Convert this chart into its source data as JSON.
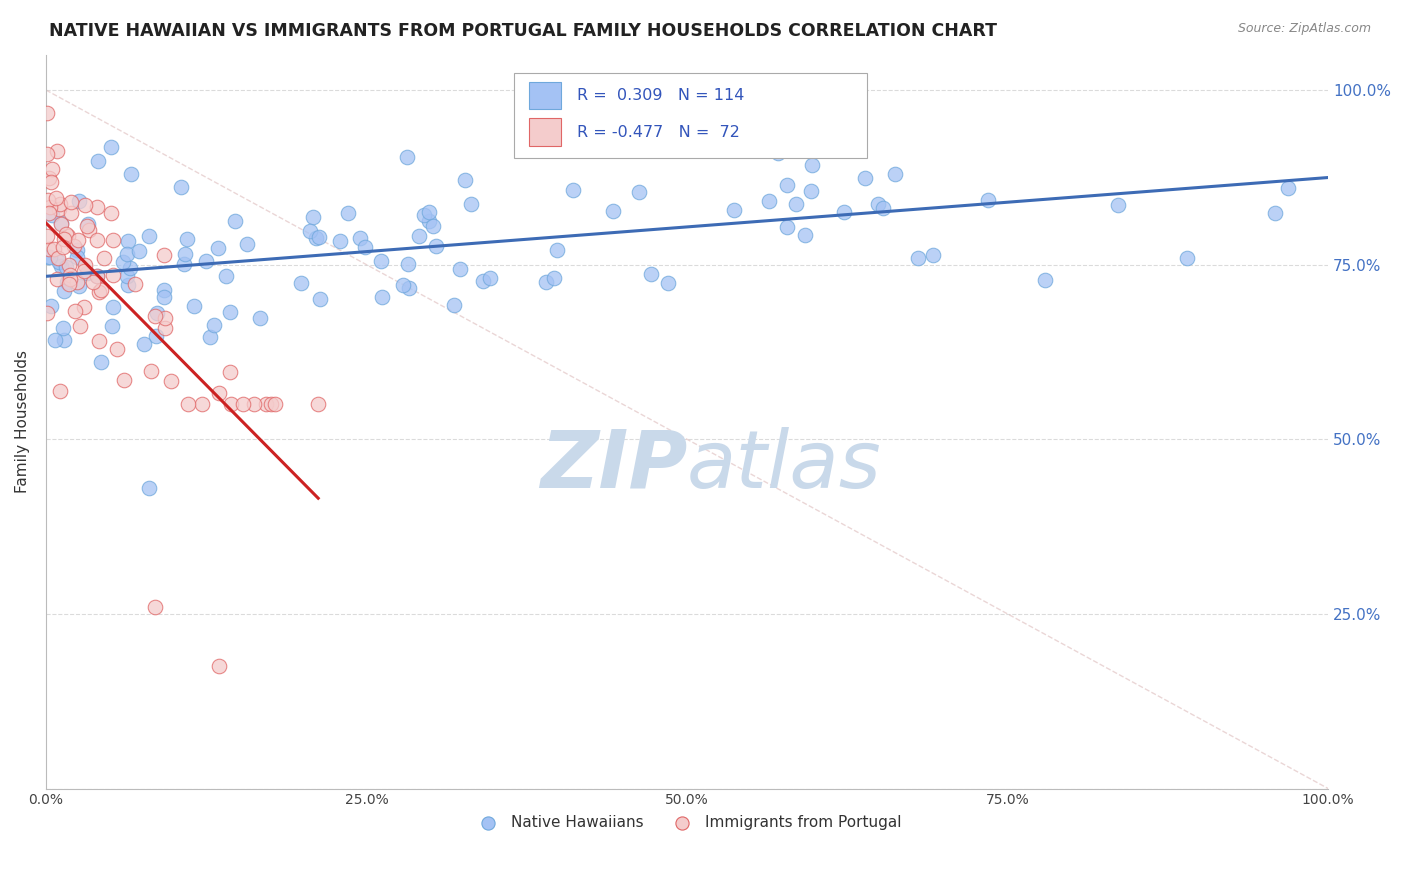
{
  "title": "NATIVE HAWAIIAN VS IMMIGRANTS FROM PORTUGAL FAMILY HOUSEHOLDS CORRELATION CHART",
  "source": "Source: ZipAtlas.com",
  "ylabel": "Family Households",
  "legend_label1": "Native Hawaiians",
  "legend_label2": "Immigrants from Portugal",
  "r1": 0.309,
  "n1": 114,
  "r2": -0.477,
  "n2": 72,
  "color_blue": "#a4c2f4",
  "color_blue_edge": "#6fa8dc",
  "color_pink": "#f4cccc",
  "color_pink_edge": "#e06666",
  "color_line_blue": "#3d6bb5",
  "color_line_pink": "#cc2222",
  "color_diag": "#cccccc",
  "background_color": "#ffffff",
  "watermark_color": "#c9d9ea",
  "seed": 42
}
